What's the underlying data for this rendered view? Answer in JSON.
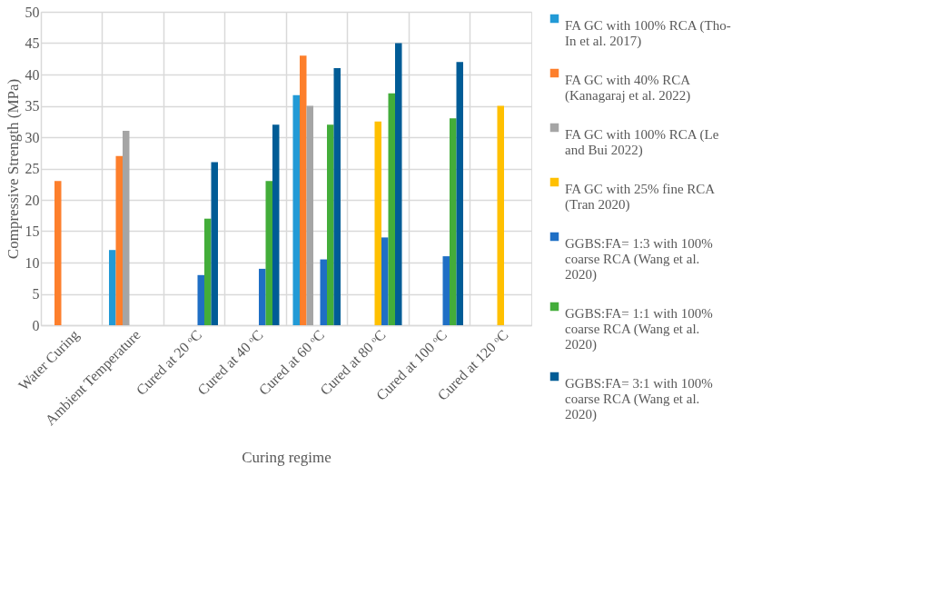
{
  "chart_data": {
    "type": "bar",
    "xlabel": "Curing regime",
    "ylabel": "Compressive Strength (MPa)",
    "categories": [
      "Water Curing",
      "Ambient Temperature",
      "Cured at 20 ᵒC",
      "Cured at 40 ᵒC",
      "Cured at 60 ᵒC",
      "Cured at 80 ᵒC",
      "Cured at 100 ᵒC",
      "Cured at 120 ᵒC"
    ],
    "series": [
      {
        "name": "FA GC with 100% RCA (Tho-In et al. 2017)",
        "color": "#229ad6",
        "values": [
          null,
          12,
          null,
          null,
          36.7,
          null,
          null,
          null
        ]
      },
      {
        "name": "FA GC with 40% RCA (Kanagaraj et al. 2022)",
        "color": "#fd7f2c",
        "values": [
          23,
          27,
          null,
          null,
          43,
          null,
          null,
          null
        ]
      },
      {
        "name": "FA GC with 100% RCA (Le and Bui 2022)",
        "color": "#a5a5a5",
        "values": [
          null,
          31,
          null,
          null,
          35,
          null,
          null,
          null
        ]
      },
      {
        "name": "FA GC with 25% fine RCA (Tran 2020)",
        "color": "#ffc000",
        "values": [
          null,
          null,
          null,
          null,
          null,
          32.5,
          null,
          35
        ]
      },
      {
        "name": "GGBS:FA=  1:3 with 100% coarse RCA (Wang et al. 2020)",
        "color": "#1f6fc5",
        "values": [
          null,
          null,
          8,
          9,
          10.5,
          14,
          11,
          null
        ]
      },
      {
        "name": "GGBS:FA=  1:1 with 100% coarse RCA (Wang et al. 2020)",
        "color": "#43ad3a",
        "values": [
          null,
          null,
          17,
          23,
          32,
          37,
          33,
          null
        ]
      },
      {
        "name": "GGBS:FA=  3:1 with 100% coarse RCA  (Wang et al. 2020)",
        "color": "#005c96",
        "values": [
          null,
          null,
          26,
          32,
          41,
          45,
          42,
          null
        ]
      }
    ],
    "ylim": [
      0,
      50
    ],
    "yticks": [
      0,
      5,
      10,
      15,
      20,
      25,
      30,
      35,
      40,
      45,
      50
    ],
    "grid": true,
    "legend": "right"
  }
}
